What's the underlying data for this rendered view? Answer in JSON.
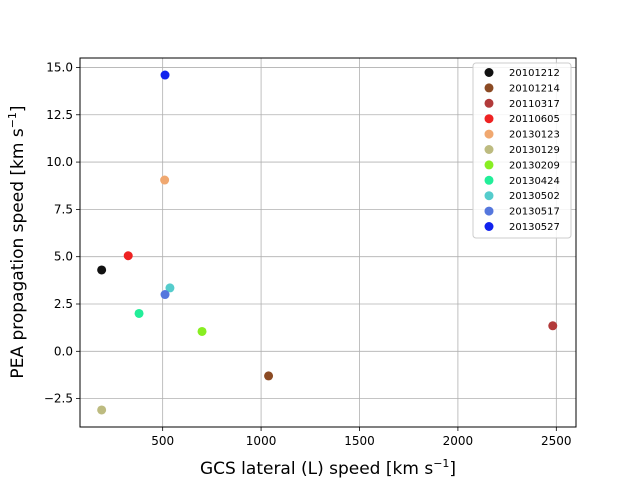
{
  "chart_data": {
    "type": "scatter",
    "title": "",
    "xlabel": "GCS lateral (L) speed [km s",
    "xlabel_sup": "−1",
    "xlabel_end": "]",
    "ylabel": "PEA propagation speed [km s",
    "ylabel_sup": "−1",
    "ylabel_end": "]",
    "xlim": [
      80,
      2600
    ],
    "ylim": [
      -4.0,
      15.5
    ],
    "xticks": [
      500,
      1000,
      1500,
      2000,
      2500
    ],
    "yticks": [
      -2.5,
      0.0,
      2.5,
      5.0,
      7.5,
      10.0,
      12.5,
      15.0
    ],
    "xtick_labels": [
      "500",
      "1000",
      "1500",
      "2000",
      "2500"
    ],
    "ytick_labels": [
      "−2.5",
      "0.0",
      "2.5",
      "5.0",
      "7.5",
      "10.0",
      "12.5",
      "15.0"
    ],
    "grid": true,
    "legend_position": "upper-right",
    "series": [
      {
        "name": "20101212",
        "color": "#111111",
        "x": 190,
        "y": 4.3
      },
      {
        "name": "20101214",
        "color": "#8b4a23",
        "x": 1038,
        "y": -1.3
      },
      {
        "name": "20110317",
        "color": "#b23a3a",
        "x": 2482,
        "y": 1.35
      },
      {
        "name": "20110605",
        "color": "#ee2222",
        "x": 325,
        "y": 5.05
      },
      {
        "name": "20130123",
        "color": "#f0a870",
        "x": 510,
        "y": 9.05
      },
      {
        "name": "20130129",
        "color": "#bdbb80",
        "x": 190,
        "y": -3.1
      },
      {
        "name": "20130209",
        "color": "#88ee22",
        "x": 700,
        "y": 1.05
      },
      {
        "name": "20130424",
        "color": "#22ee99",
        "x": 380,
        "y": 2.0
      },
      {
        "name": "20130502",
        "color": "#55cccc",
        "x": 537,
        "y": 3.35
      },
      {
        "name": "20130517",
        "color": "#5577dd",
        "x": 512,
        "y": 3.0
      },
      {
        "name": "20130527",
        "color": "#1122ee",
        "x": 512,
        "y": 14.6
      }
    ]
  }
}
